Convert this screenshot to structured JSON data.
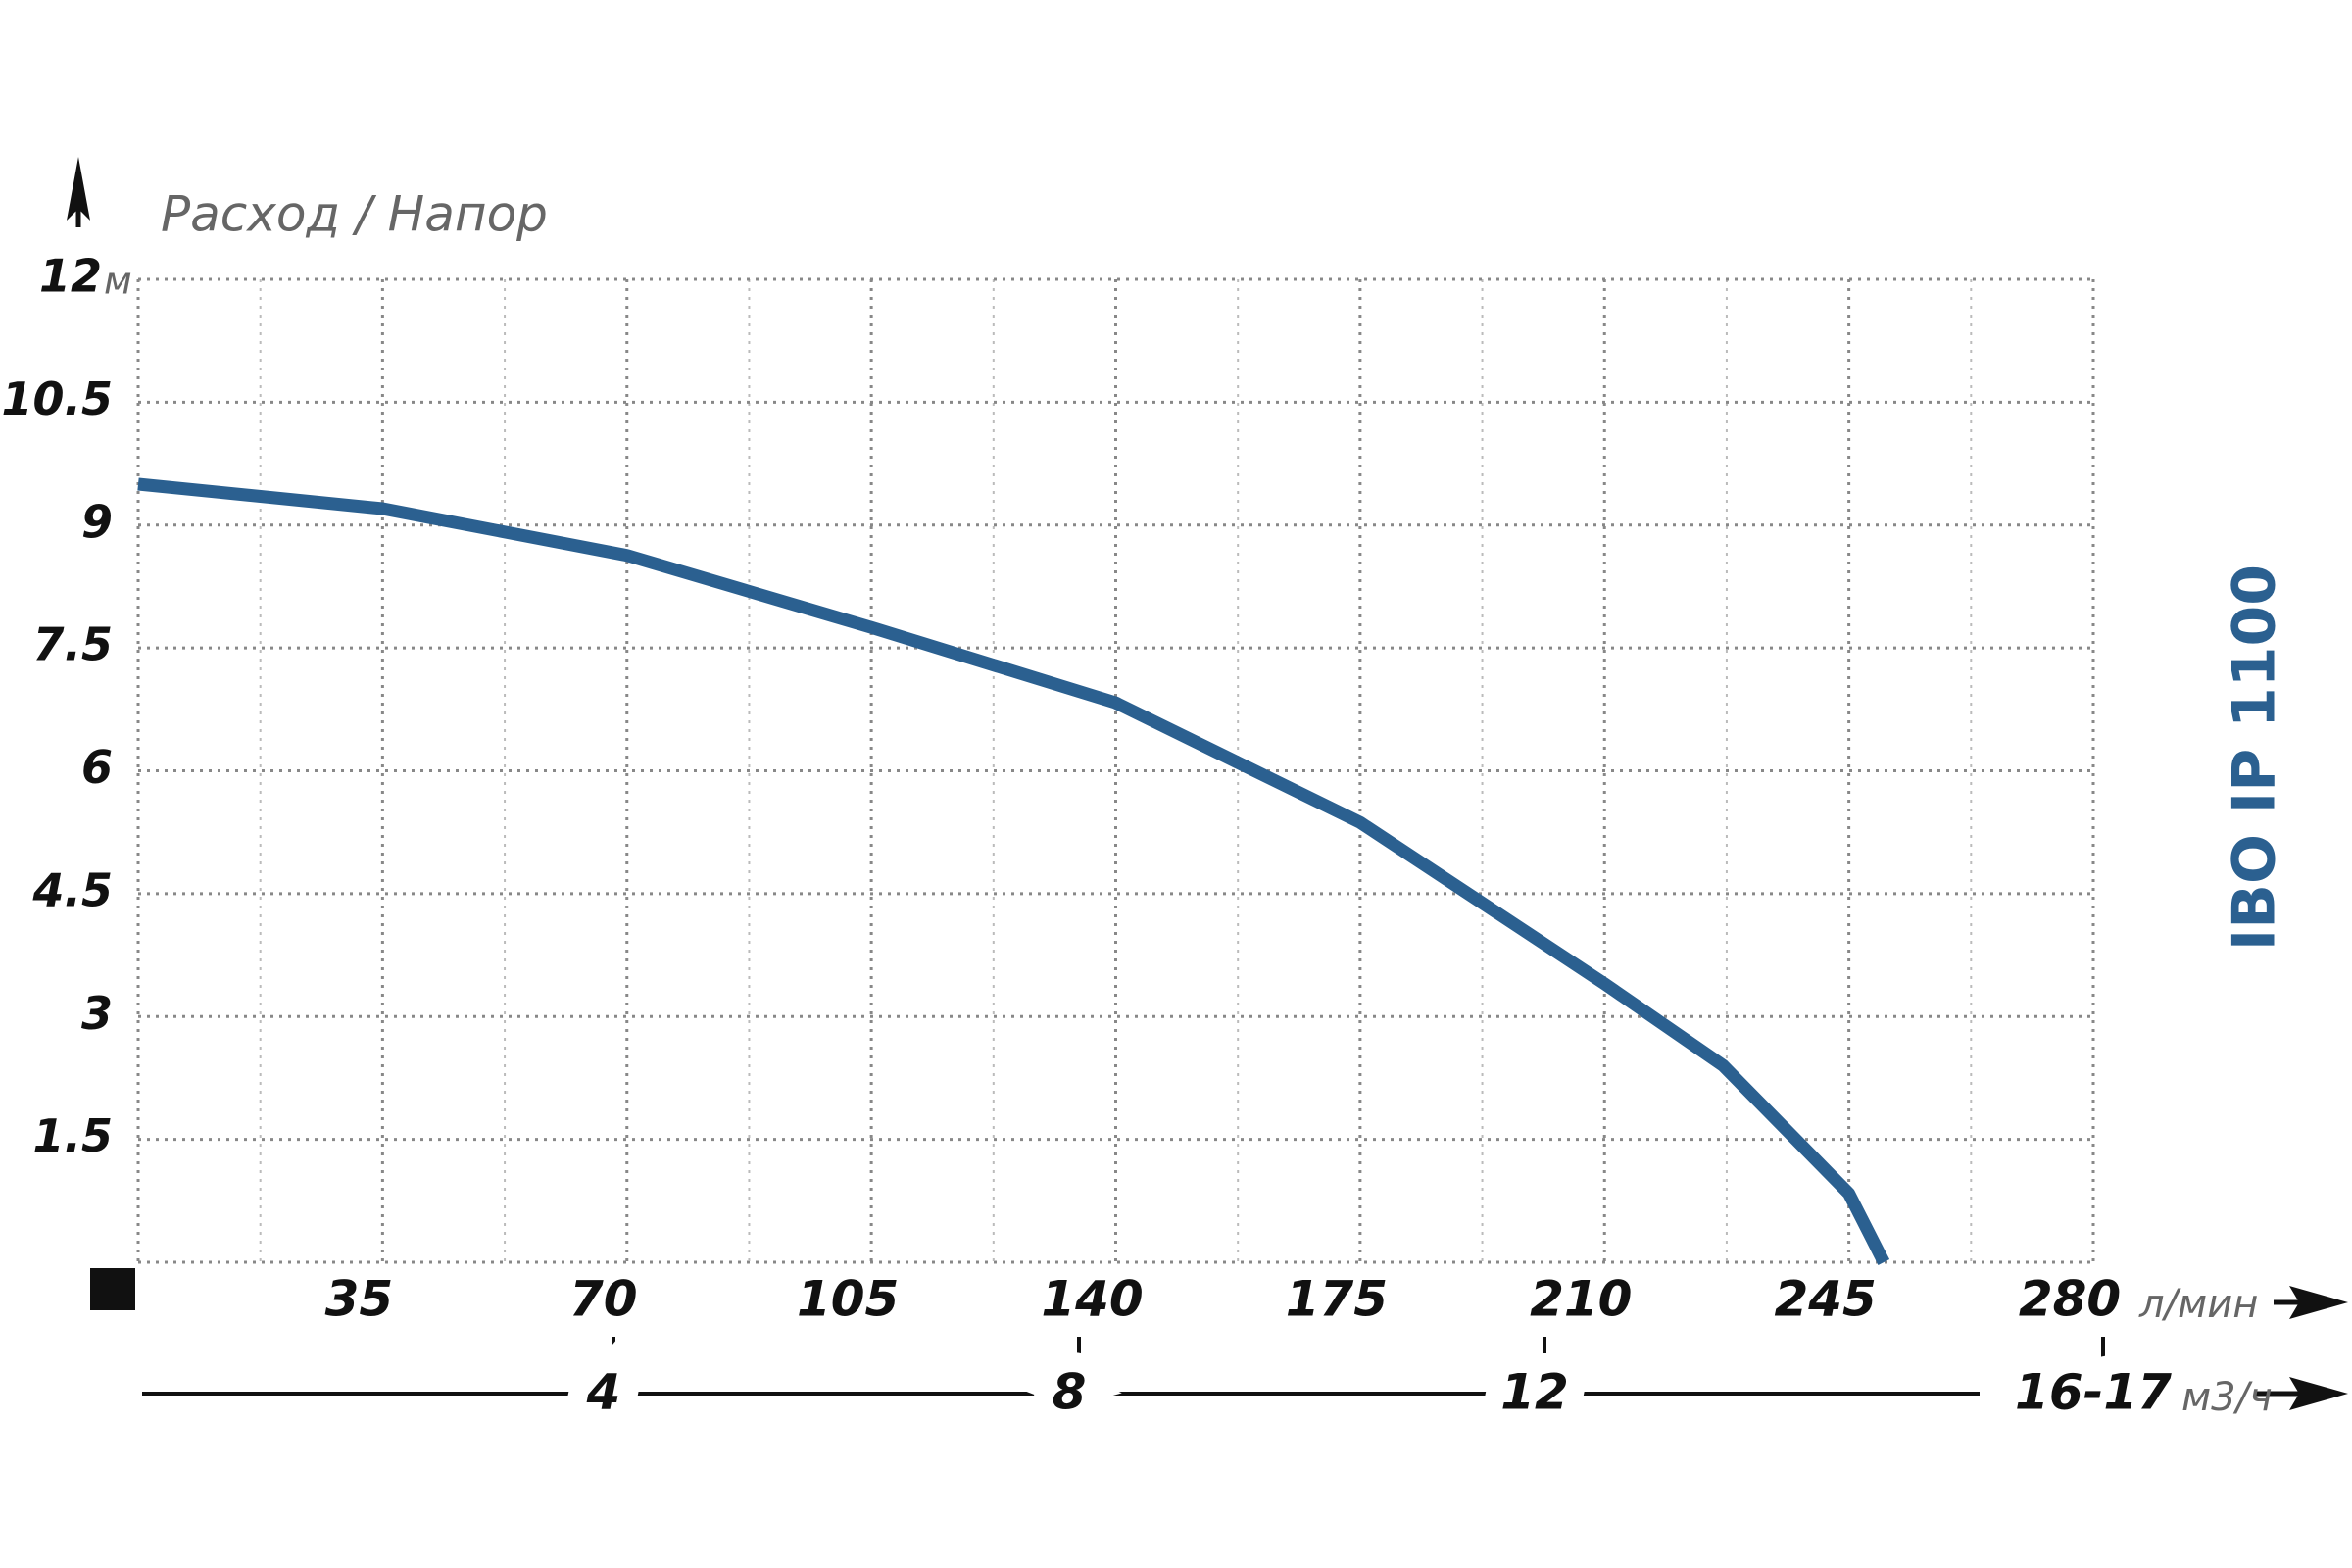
{
  "chart_data": {
    "type": "line",
    "title": "Расход / Напор",
    "side_label": "IBO IP 1100",
    "y_unit": "м",
    "x_unit": "л/мин",
    "x2_unit": "м3/ч",
    "x": [
      0,
      35,
      70,
      105,
      140,
      175,
      210,
      227,
      245,
      250
    ],
    "series": [
      {
        "color": "#2b6090",
        "values": [
          9.5,
          9.2,
          8.63,
          7.75,
          6.83,
          5.37,
          3.4,
          2.4,
          0.84,
          0
        ]
      }
    ],
    "xlim": [
      0,
      280
    ],
    "xticks": [
      35,
      70,
      105,
      140,
      175,
      210,
      245,
      280
    ],
    "xminorticks": [
      17.5,
      52.5,
      87.5,
      122.5,
      157.5,
      192.5,
      227.5,
      262.5
    ],
    "ylim": [
      0,
      12
    ],
    "yticks": [
      1.5,
      3,
      4.5,
      6,
      7.5,
      9,
      10.5,
      12
    ],
    "x2lim": [
      0,
      16.8
    ],
    "x2ticks": [
      4,
      8,
      12,
      {
        "value": 16.8,
        "label": "16-17"
      }
    ],
    "grid": true
  }
}
